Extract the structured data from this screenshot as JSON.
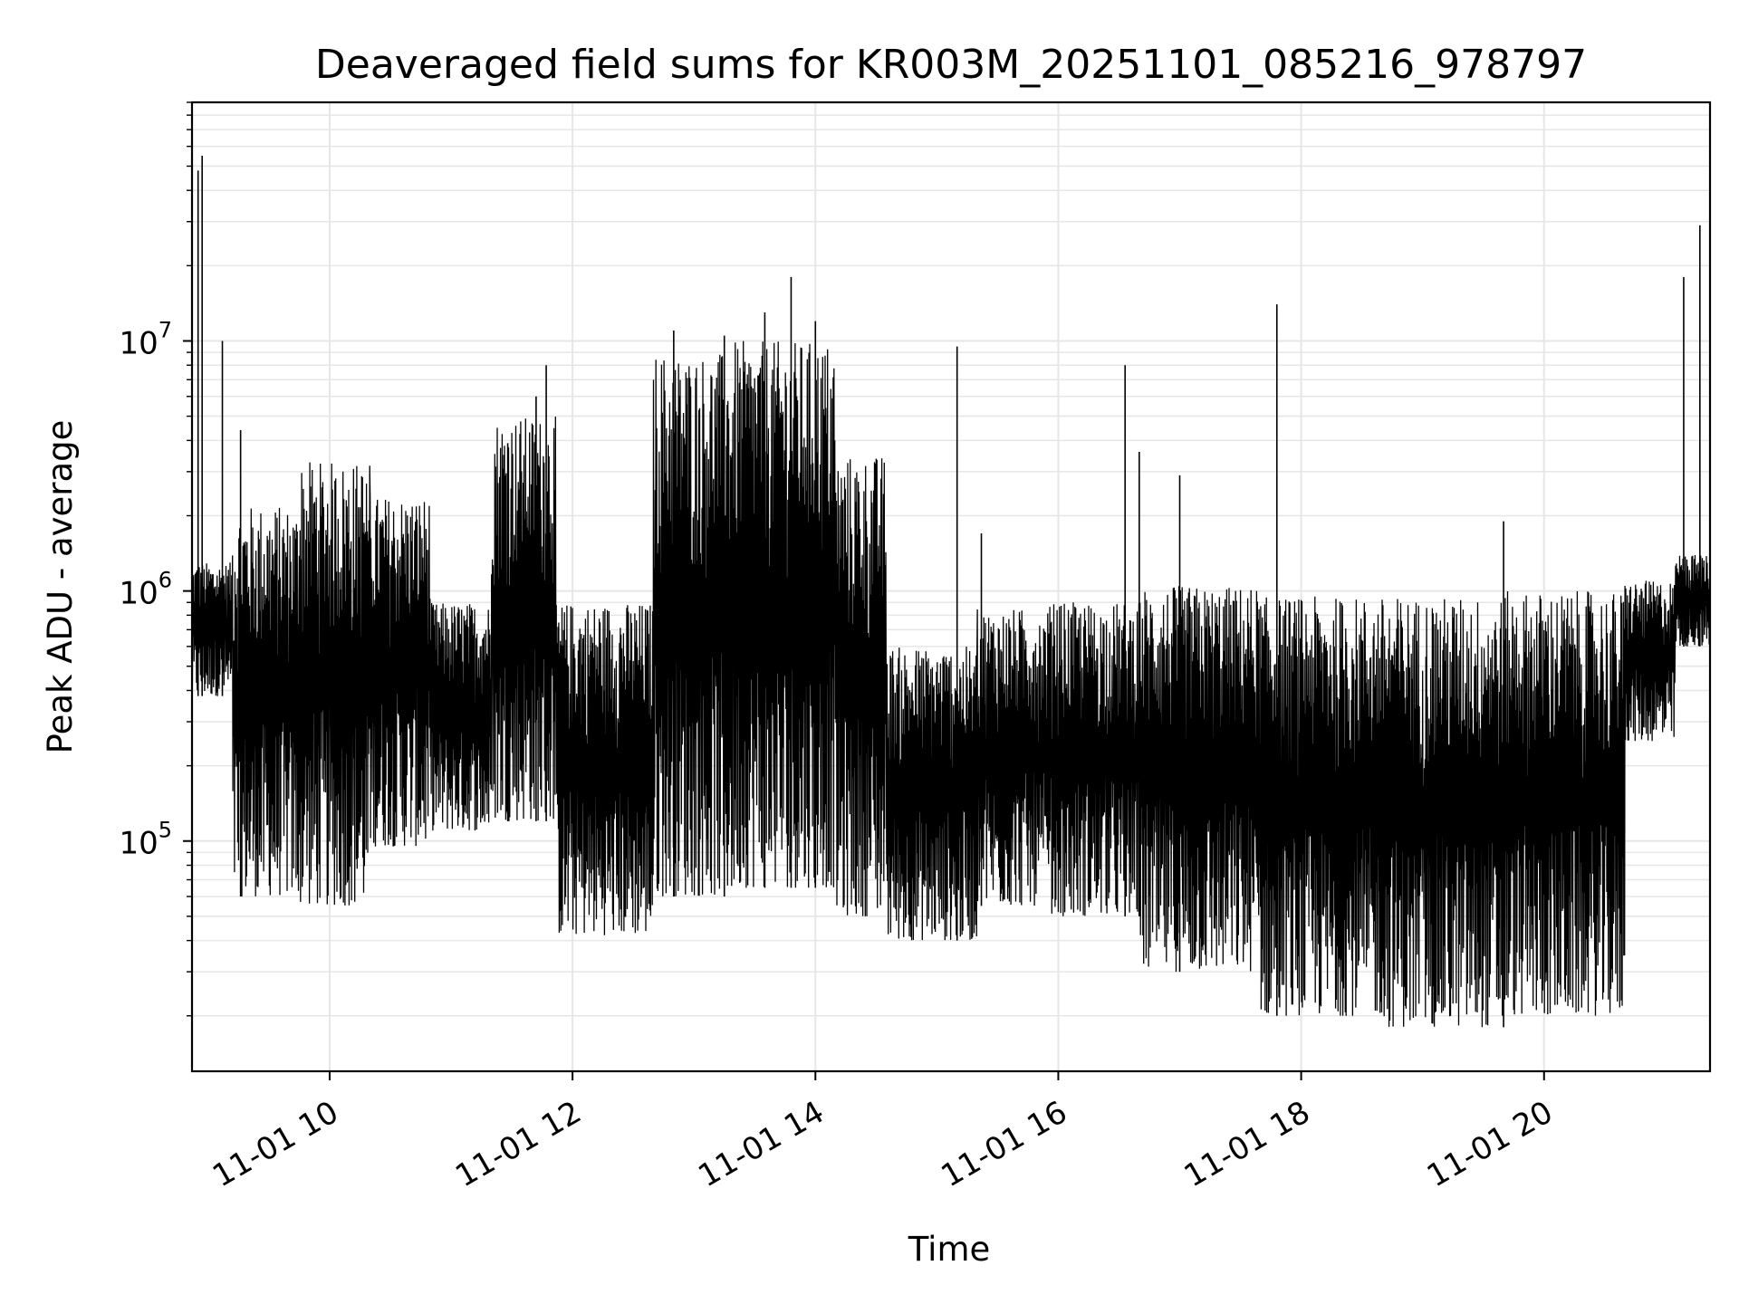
{
  "chart_data": {
    "type": "line",
    "title": "Deaveraged field sums for KR003M_20251101_085216_978797",
    "xlabel": "Time",
    "ylabel": "Peak ADU - average",
    "x_axis": {
      "kind": "datetime",
      "range": [
        "2025-11-01 08:52",
        "2025-11-01 21:22"
      ],
      "ticks": [
        {
          "value": "2025-11-01 10:00",
          "label": "11-01 10"
        },
        {
          "value": "2025-11-01 12:00",
          "label": "11-01 12"
        },
        {
          "value": "2025-11-01 14:00",
          "label": "11-01 14"
        },
        {
          "value": "2025-11-01 16:00",
          "label": "11-01 16"
        },
        {
          "value": "2025-11-01 18:00",
          "label": "11-01 18"
        },
        {
          "value": "2025-11-01 20:00",
          "label": "11-01 20"
        }
      ]
    },
    "y_axis": {
      "scale": "log",
      "range": [
        12000,
        90000000
      ],
      "ticks": [
        {
          "value": 100000,
          "base": "10",
          "exp": "5"
        },
        {
          "value": 1000000,
          "base": "10",
          "exp": "6"
        },
        {
          "value": 10000000,
          "base": "10",
          "exp": "7"
        }
      ]
    },
    "grid": true,
    "line_color": "#000000",
    "grid_color": "#e6e6e6",
    "series": [
      {
        "segments": [
          {
            "start": "2025-11-01 08:52",
            "end": "2025-11-01 09:12",
            "low": 380000,
            "high": 1300000
          },
          {
            "start": "2025-11-01 09:12",
            "end": "2025-11-01 09:45",
            "low": 60000,
            "high": 2200000
          },
          {
            "start": "2025-11-01 09:45",
            "end": "2025-11-01 10:20",
            "low": 55000,
            "high": 3300000
          },
          {
            "start": "2025-11-01 10:20",
            "end": "2025-11-01 10:50",
            "low": 95000,
            "high": 2400000
          },
          {
            "start": "2025-11-01 10:50",
            "end": "2025-11-01 11:20",
            "low": 110000,
            "high": 900000
          },
          {
            "start": "2025-11-01 11:20",
            "end": "2025-11-01 11:52",
            "low": 120000,
            "high": 5000000
          },
          {
            "start": "2025-11-01 11:52",
            "end": "2025-11-01 12:40",
            "low": 42000,
            "high": 900000
          },
          {
            "start": "2025-11-01 12:40",
            "end": "2025-11-01 13:20",
            "low": 60000,
            "high": 9000000
          },
          {
            "start": "2025-11-01 13:20",
            "end": "2025-11-01 14:10",
            "low": 65000,
            "high": 10000000
          },
          {
            "start": "2025-11-01 14:10",
            "end": "2025-11-01 14:35",
            "low": 50000,
            "high": 3500000
          },
          {
            "start": "2025-11-01 14:35",
            "end": "2025-11-01 15:20",
            "low": 40000,
            "high": 600000
          },
          {
            "start": "2025-11-01 15:20",
            "end": "2025-11-01 15:55",
            "low": 55000,
            "high": 850000
          },
          {
            "start": "2025-11-01 15:55",
            "end": "2025-11-01 16:40",
            "low": 50000,
            "high": 900000
          },
          {
            "start": "2025-11-01 16:40",
            "end": "2025-11-01 17:40",
            "low": 30000,
            "high": 1050000
          },
          {
            "start": "2025-11-01 17:40",
            "end": "2025-11-01 18:40",
            "low": 20000,
            "high": 950000
          },
          {
            "start": "2025-11-01 18:40",
            "end": "2025-11-01 19:40",
            "low": 18000,
            "high": 950000
          },
          {
            "start": "2025-11-01 19:40",
            "end": "2025-11-01 20:40",
            "low": 20000,
            "high": 1000000
          },
          {
            "start": "2025-11-01 20:40",
            "end": "2025-11-01 21:05",
            "low": 250000,
            "high": 1100000
          },
          {
            "start": "2025-11-01 21:05",
            "end": "2025-11-01 21:22",
            "low": 600000,
            "high": 1400000
          }
        ],
        "spikes": [
          {
            "x": "2025-11-01 08:55",
            "y": 48000000
          },
          {
            "x": "2025-11-01 08:57",
            "y": 55000000
          },
          {
            "x": "2025-11-01 09:07",
            "y": 10000000
          },
          {
            "x": "2025-11-01 09:16",
            "y": 4400000
          },
          {
            "x": "2025-11-01 11:28",
            "y": 3900000
          },
          {
            "x": "2025-11-01 11:42",
            "y": 6000000
          },
          {
            "x": "2025-11-01 11:47",
            "y": 8000000
          },
          {
            "x": "2025-11-01 12:50",
            "y": 11000000
          },
          {
            "x": "2025-11-01 13:15",
            "y": 10500000
          },
          {
            "x": "2025-11-01 13:35",
            "y": 13000000
          },
          {
            "x": "2025-11-01 13:48",
            "y": 18000000
          },
          {
            "x": "2025-11-01 14:00",
            "y": 12000000
          },
          {
            "x": "2025-11-01 15:10",
            "y": 9500000
          },
          {
            "x": "2025-11-01 15:22",
            "y": 1700000
          },
          {
            "x": "2025-11-01 16:33",
            "y": 8000000
          },
          {
            "x": "2025-11-01 16:40",
            "y": 3600000
          },
          {
            "x": "2025-11-01 17:00",
            "y": 2900000
          },
          {
            "x": "2025-11-01 17:48",
            "y": 14000000
          },
          {
            "x": "2025-11-01 19:40",
            "y": 1900000
          },
          {
            "x": "2025-11-01 21:09",
            "y": 18000000
          },
          {
            "x": "2025-11-01 21:17",
            "y": 29000000
          }
        ]
      }
    ]
  }
}
